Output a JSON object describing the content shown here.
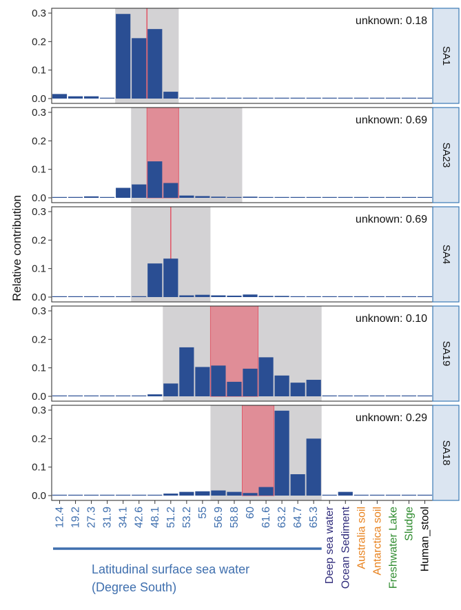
{
  "chart_data": {
    "type": "bar",
    "ylabel": "Relative contribution",
    "ylim": [
      0,
      0.3
    ],
    "yticks": [
      "0.0",
      "0.1",
      "0.2",
      "0.3"
    ],
    "grid": false,
    "categories": [
      "12.4",
      "19.2",
      "27.3",
      "31.9",
      "34.1",
      "42.6",
      "48.1",
      "51.2",
      "53.2",
      "55",
      "56.9",
      "58.8",
      "60",
      "61.6",
      "63.2",
      "64.7",
      "65.3",
      "Deep sea water",
      "Ocean Sediment",
      "Australia soil",
      "Antarctica soil",
      "Freshwater Lake",
      "Sludge",
      "Human_stool"
    ],
    "category_colors": [
      "#3f6fae",
      "#3f6fae",
      "#3f6fae",
      "#3f6fae",
      "#3f6fae",
      "#3f6fae",
      "#3f6fae",
      "#3f6fae",
      "#3f6fae",
      "#3f6fae",
      "#3f6fae",
      "#3f6fae",
      "#3f6fae",
      "#3f6fae",
      "#3f6fae",
      "#3f6fae",
      "#3f6fae",
      "#2e2a7a",
      "#2e2a7a",
      "#e8821e",
      "#e8821e",
      "#2e8b2e",
      "#2e8b2e",
      "#000000"
    ],
    "group_label_line1": "Latitudinal surface sea water",
    "group_label_line2": "(Degree South)",
    "group_span": [
      0,
      16
    ],
    "bar_color": "#2a4e93",
    "range_color": "#d3d2d4",
    "true_color": "#e08d97",
    "true_line_color": "#e05a6a",
    "panels": [
      {
        "name": "SA1",
        "unknown": "unknown: 0.18",
        "values": [
          0.016,
          0.008,
          0.008,
          0.002,
          0.297,
          0.212,
          0.244,
          0.024,
          0.002,
          0.002,
          0.001,
          0.001,
          0.001,
          0.001,
          0.001,
          0.001,
          0.001,
          0.001,
          0.001,
          0.001,
          0.001,
          0.001,
          0.001,
          0.001
        ],
        "range": [
          4,
          7
        ],
        "true_range": [
          5.5,
          5.5
        ]
      },
      {
        "name": "SA23",
        "unknown": "unknown: 0.69",
        "values": [
          0.002,
          0.003,
          0.005,
          0.001,
          0.035,
          0.047,
          0.128,
          0.052,
          0.008,
          0.006,
          0.004,
          0.003,
          0.004,
          0.002,
          0.001,
          0.001,
          0.001,
          0.001,
          0.001,
          0.001,
          0.001,
          0.001,
          0.001,
          0.001
        ],
        "range": [
          5,
          11
        ],
        "true_range": [
          6,
          7
        ]
      },
      {
        "name": "SA4",
        "unknown": "unknown: 0.69",
        "values": [
          0.001,
          0.001,
          0.002,
          0.001,
          0.001,
          0.003,
          0.118,
          0.135,
          0.006,
          0.008,
          0.006,
          0.005,
          0.009,
          0.004,
          0.004,
          0.002,
          0.001,
          0.001,
          0.001,
          0.001,
          0.001,
          0.001,
          0.001,
          0.001
        ],
        "range": [
          5,
          9
        ],
        "true_range": [
          7,
          7
        ]
      },
      {
        "name": "SA19",
        "unknown": "unknown: 0.10",
        "values": [
          0.001,
          0.001,
          0.001,
          0.001,
          0.001,
          0.001,
          0.007,
          0.045,
          0.172,
          0.103,
          0.108,
          0.051,
          0.097,
          0.137,
          0.073,
          0.048,
          0.058,
          0.002,
          0.001,
          0.001,
          0.001,
          0.001,
          0.001,
          0.001
        ],
        "range": [
          7,
          16
        ],
        "true_range": [
          10,
          12
        ]
      },
      {
        "name": "SA18",
        "unknown": "unknown: 0.29",
        "values": [
          0.001,
          0.001,
          0.001,
          0.001,
          0.001,
          0.002,
          0.001,
          0.007,
          0.013,
          0.015,
          0.018,
          0.013,
          0.009,
          0.03,
          0.298,
          0.075,
          0.2,
          0.002,
          0.013,
          0.001,
          0.001,
          0.001,
          0.001,
          0.001
        ],
        "range": [
          10,
          16
        ],
        "true_range": [
          12,
          13
        ]
      }
    ]
  }
}
